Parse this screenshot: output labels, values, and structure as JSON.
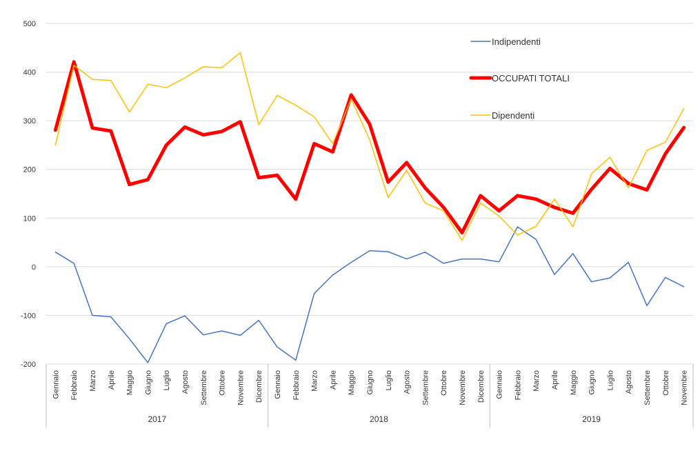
{
  "chart_data": {
    "type": "line",
    "ylim": [
      -200,
      500
    ],
    "yticks": [
      500,
      400,
      300,
      200,
      100,
      0,
      -100,
      -200
    ],
    "grid": true,
    "legend_position": "top-right",
    "categories": [
      "Gennaio",
      "Febbraio",
      "Marzo",
      "Aprile",
      "Maggio",
      "Giugno",
      "Luglio",
      "Agosto",
      "Settembre",
      "Ottobre",
      "Novembre",
      "Dicembre",
      "Gennaio",
      "Febbraio",
      "Marzo",
      "Aprile",
      "Maggio",
      "Giugno",
      "Luglio",
      "Agosto",
      "Settembre",
      "Ottobre",
      "Novembre",
      "Dicembre",
      "Gennaio",
      "Febbraio",
      "Marzo",
      "Aprile",
      "Maggio",
      "Giugno",
      "Luglio",
      "Agosto",
      "Settembre",
      "Ottobre",
      "Novembre"
    ],
    "groups": [
      {
        "label": "2017",
        "count": 12
      },
      {
        "label": "2018",
        "count": 12
      },
      {
        "label": "2019",
        "count": 11
      }
    ],
    "series": [
      {
        "name": "Indipendenti",
        "color": "#4472C4",
        "width": 1.5,
        "values": [
          30,
          7,
          -100,
          -103,
          -148,
          -197,
          -117,
          -101,
          -140,
          -132,
          -141,
          -110,
          -165,
          -192,
          -55,
          -17,
          9,
          33,
          31,
          16,
          30,
          7,
          16,
          16,
          10,
          82,
          56,
          -16,
          27,
          -31,
          -23,
          9,
          -80,
          -22,
          -41
        ]
      },
      {
        "name": "OCCUPATI TOTALI",
        "color": "#FF0000",
        "width": 5,
        "values": [
          281,
          421,
          285,
          279,
          169,
          179,
          250,
          287,
          271,
          278,
          298,
          183,
          188,
          139,
          253,
          236,
          353,
          293,
          174,
          214,
          162,
          122,
          70,
          146,
          115,
          146,
          139,
          122,
          110,
          159,
          202,
          171,
          158,
          232,
          286
        ]
      },
      {
        "name": "Dipendenti",
        "color": "#FFC000",
        "width": 1.5,
        "values": [
          250,
          414,
          385,
          383,
          318,
          375,
          368,
          388,
          411,
          409,
          440,
          292,
          352,
          332,
          308,
          253,
          345,
          261,
          142,
          198,
          131,
          115,
          54,
          131,
          104,
          65,
          83,
          139,
          82,
          191,
          225,
          162,
          239,
          256,
          325
        ]
      }
    ]
  }
}
